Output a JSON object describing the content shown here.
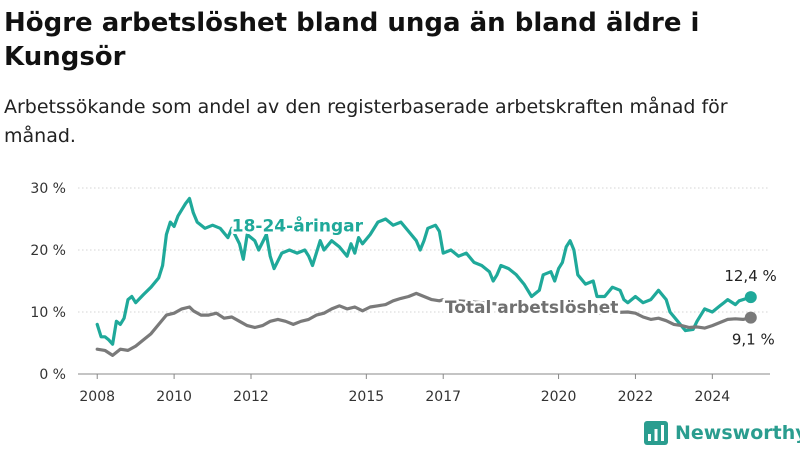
{
  "title": "Högre arbetslöshet bland unga än bland äldre i Kungsör",
  "subtitle": "Arbetssökande som andel av den registerbaserade arbetskraften månad för månad.",
  "brand": {
    "name": "Newsworthy",
    "icon": "bar-chart-icon",
    "color": "#2a9d8f"
  },
  "chart_data": {
    "type": "line",
    "title": "Högre arbetslöshet bland unga än bland äldre i Kungsör",
    "subtitle": "Arbetssökande som andel av den registerbaserade arbetskraften månad för månad.",
    "xlabel": "",
    "ylabel": "",
    "xlim": [
      2007.5,
      2025.5
    ],
    "ylim": [
      0,
      30
    ],
    "x_ticks": [
      2008,
      2010,
      2012,
      2015,
      2017,
      2020,
      2022,
      2024
    ],
    "y_ticks": [
      {
        "value": 0,
        "label": "0 %"
      },
      {
        "value": 10,
        "label": "10 %"
      },
      {
        "value": 20,
        "label": "20 %"
      },
      {
        "value": 30,
        "label": "30 %"
      }
    ],
    "grid": "horizontal",
    "series": [
      {
        "name": "18-24-åringar",
        "color": "#1fa99a",
        "end_label": "12,4 %",
        "points": [
          [
            2008.0,
            8.0
          ],
          [
            2008.1,
            6.0
          ],
          [
            2008.2,
            6.0
          ],
          [
            2008.3,
            5.5
          ],
          [
            2008.4,
            4.8
          ],
          [
            2008.5,
            8.5
          ],
          [
            2008.6,
            8.0
          ],
          [
            2008.7,
            9.0
          ],
          [
            2008.8,
            12.0
          ],
          [
            2008.9,
            12.5
          ],
          [
            2009.0,
            11.5
          ],
          [
            2009.2,
            12.8
          ],
          [
            2009.4,
            14.0
          ],
          [
            2009.6,
            15.5
          ],
          [
            2009.7,
            17.5
          ],
          [
            2009.8,
            22.5
          ],
          [
            2009.9,
            24.5
          ],
          [
            2010.0,
            23.8
          ],
          [
            2010.1,
            25.5
          ],
          [
            2010.2,
            26.5
          ],
          [
            2010.3,
            27.5
          ],
          [
            2010.4,
            28.3
          ],
          [
            2010.5,
            26.0
          ],
          [
            2010.6,
            24.5
          ],
          [
            2010.8,
            23.5
          ],
          [
            2011.0,
            24.0
          ],
          [
            2011.2,
            23.5
          ],
          [
            2011.4,
            22.0
          ],
          [
            2011.5,
            23.5
          ],
          [
            2011.7,
            21.0
          ],
          [
            2011.8,
            18.5
          ],
          [
            2011.9,
            22.5
          ],
          [
            2012.1,
            21.5
          ],
          [
            2012.2,
            20.0
          ],
          [
            2012.4,
            22.5
          ],
          [
            2012.5,
            19.0
          ],
          [
            2012.6,
            17.0
          ],
          [
            2012.8,
            19.5
          ],
          [
            2013.0,
            20.0
          ],
          [
            2013.2,
            19.5
          ],
          [
            2013.4,
            20.0
          ],
          [
            2013.5,
            19.0
          ],
          [
            2013.6,
            17.5
          ],
          [
            2013.8,
            21.5
          ],
          [
            2013.9,
            20.0
          ],
          [
            2014.1,
            21.5
          ],
          [
            2014.3,
            20.5
          ],
          [
            2014.5,
            19.0
          ],
          [
            2014.6,
            21.0
          ],
          [
            2014.7,
            19.5
          ],
          [
            2014.8,
            22.0
          ],
          [
            2014.9,
            21.0
          ],
          [
            2015.1,
            22.5
          ],
          [
            2015.3,
            24.5
          ],
          [
            2015.5,
            25.0
          ],
          [
            2015.7,
            24.0
          ],
          [
            2015.9,
            24.5
          ],
          [
            2016.1,
            23.0
          ],
          [
            2016.3,
            21.5
          ],
          [
            2016.4,
            20.0
          ],
          [
            2016.5,
            21.5
          ],
          [
            2016.6,
            23.5
          ],
          [
            2016.8,
            24.0
          ],
          [
            2016.9,
            23.0
          ],
          [
            2017.0,
            19.5
          ],
          [
            2017.2,
            20.0
          ],
          [
            2017.4,
            19.0
          ],
          [
            2017.6,
            19.5
          ],
          [
            2017.8,
            18.0
          ],
          [
            2018.0,
            17.5
          ],
          [
            2018.2,
            16.5
          ],
          [
            2018.3,
            15.0
          ],
          [
            2018.4,
            16.0
          ],
          [
            2018.5,
            17.5
          ],
          [
            2018.7,
            17.0
          ],
          [
            2018.9,
            16.0
          ],
          [
            2019.1,
            14.5
          ],
          [
            2019.3,
            12.5
          ],
          [
            2019.5,
            13.5
          ],
          [
            2019.6,
            16.0
          ],
          [
            2019.8,
            16.5
          ],
          [
            2019.9,
            15.0
          ],
          [
            2020.0,
            17.0
          ],
          [
            2020.1,
            18.0
          ],
          [
            2020.2,
            20.5
          ],
          [
            2020.3,
            21.5
          ],
          [
            2020.4,
            20.0
          ],
          [
            2020.5,
            16.0
          ],
          [
            2020.7,
            14.5
          ],
          [
            2020.9,
            15.0
          ],
          [
            2021.0,
            12.5
          ],
          [
            2021.2,
            12.5
          ],
          [
            2021.4,
            14.0
          ],
          [
            2021.6,
            13.5
          ],
          [
            2021.7,
            12.0
          ],
          [
            2021.8,
            11.5
          ],
          [
            2022.0,
            12.5
          ],
          [
            2022.2,
            11.5
          ],
          [
            2022.4,
            12.0
          ],
          [
            2022.6,
            13.5
          ],
          [
            2022.8,
            12.0
          ],
          [
            2022.9,
            10.0
          ],
          [
            2023.1,
            8.5
          ],
          [
            2023.3,
            7.0
          ],
          [
            2023.5,
            7.2
          ],
          [
            2023.6,
            8.5
          ],
          [
            2023.8,
            10.5
          ],
          [
            2024.0,
            10.0
          ],
          [
            2024.2,
            11.0
          ],
          [
            2024.3,
            11.5
          ],
          [
            2024.4,
            12.0
          ],
          [
            2024.6,
            11.2
          ],
          [
            2024.7,
            11.8
          ],
          [
            2024.9,
            12.2
          ],
          [
            2025.0,
            12.4
          ]
        ]
      },
      {
        "name": "Total arbetslöshet",
        "color": "#7a7a7a",
        "end_label": "9,1 %",
        "points": [
          [
            2008.0,
            4.0
          ],
          [
            2008.2,
            3.8
          ],
          [
            2008.4,
            3.0
          ],
          [
            2008.6,
            4.0
          ],
          [
            2008.8,
            3.8
          ],
          [
            2009.0,
            4.5
          ],
          [
            2009.2,
            5.5
          ],
          [
            2009.4,
            6.5
          ],
          [
            2009.6,
            8.0
          ],
          [
            2009.8,
            9.5
          ],
          [
            2010.0,
            9.8
          ],
          [
            2010.2,
            10.5
          ],
          [
            2010.4,
            10.8
          ],
          [
            2010.5,
            10.2
          ],
          [
            2010.7,
            9.5
          ],
          [
            2010.9,
            9.5
          ],
          [
            2011.1,
            9.8
          ],
          [
            2011.3,
            9.0
          ],
          [
            2011.5,
            9.2
          ],
          [
            2011.7,
            8.5
          ],
          [
            2011.9,
            7.8
          ],
          [
            2012.1,
            7.5
          ],
          [
            2012.3,
            7.8
          ],
          [
            2012.5,
            8.5
          ],
          [
            2012.7,
            8.8
          ],
          [
            2012.9,
            8.5
          ],
          [
            2013.1,
            8.0
          ],
          [
            2013.3,
            8.5
          ],
          [
            2013.5,
            8.8
          ],
          [
            2013.7,
            9.5
          ],
          [
            2013.9,
            9.8
          ],
          [
            2014.1,
            10.5
          ],
          [
            2014.3,
            11.0
          ],
          [
            2014.5,
            10.5
          ],
          [
            2014.7,
            10.8
          ],
          [
            2014.9,
            10.2
          ],
          [
            2015.1,
            10.8
          ],
          [
            2015.3,
            11.0
          ],
          [
            2015.5,
            11.2
          ],
          [
            2015.7,
            11.8
          ],
          [
            2015.9,
            12.2
          ],
          [
            2016.1,
            12.5
          ],
          [
            2016.3,
            13.0
          ],
          [
            2016.5,
            12.5
          ],
          [
            2016.7,
            12.0
          ],
          [
            2016.9,
            11.8
          ],
          [
            2017.0,
            12.0
          ],
          [
            2019.0,
            11.0
          ],
          [
            2020.0,
            10.0
          ],
          [
            2021.0,
            9.8
          ],
          [
            2021.8,
            10.0
          ],
          [
            2022.0,
            9.8
          ],
          [
            2022.2,
            9.2
          ],
          [
            2022.4,
            8.8
          ],
          [
            2022.6,
            9.0
          ],
          [
            2022.8,
            8.6
          ],
          [
            2023.0,
            8.0
          ],
          [
            2023.2,
            7.8
          ],
          [
            2023.4,
            7.5
          ],
          [
            2023.6,
            7.6
          ],
          [
            2023.8,
            7.4
          ],
          [
            2024.0,
            7.8
          ],
          [
            2024.2,
            8.3
          ],
          [
            2024.4,
            8.8
          ],
          [
            2024.6,
            8.9
          ],
          [
            2024.8,
            8.8
          ],
          [
            2025.0,
            9.1
          ]
        ]
      }
    ]
  }
}
